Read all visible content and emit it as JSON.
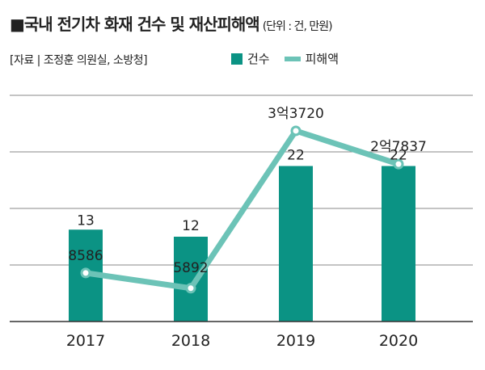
{
  "header": {
    "title": "■국내 전기차 화재 건수 및 재산피해액",
    "unit": "(단위 : 건, 만원)",
    "source": "[자료 | 조정훈 의원실, 소방청]"
  },
  "colors": {
    "bar": "#0b9384",
    "line": "#6cc3b7",
    "grid": "#8a8a8a",
    "text": "#222222"
  },
  "chart_data": {
    "type": "bar",
    "categories": [
      "2017",
      "2018",
      "2019",
      "2020"
    ],
    "series": [
      {
        "name": "건수",
        "type": "bar",
        "values": [
          13,
          12,
          22,
          22
        ],
        "labels": [
          "13",
          "12",
          "22",
          "22"
        ]
      },
      {
        "name": "피해액",
        "type": "line",
        "values": [
          8586,
          5892,
          33720,
          27837
        ],
        "labels": [
          "8586",
          "5892",
          "3억3720",
          "2억7837"
        ]
      }
    ],
    "bar_axis_max": 32,
    "line_axis_max": 40000,
    "grid": true,
    "legend_position": "top-right"
  }
}
